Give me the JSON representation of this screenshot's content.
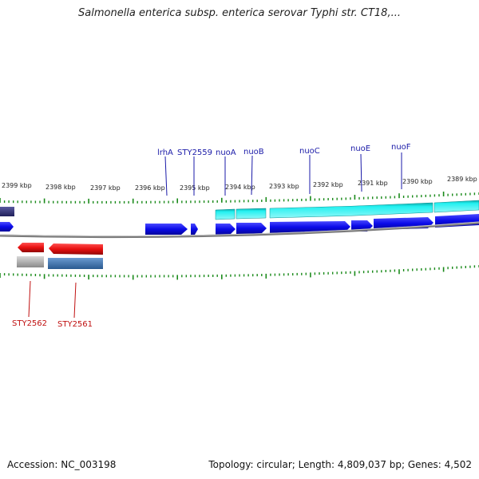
{
  "title": "Salmonella enterica subsp. enterica serovar Typhi str. CT18,...",
  "footer": {
    "accession": "Accession: NC_003198",
    "topology": "Topology: circular; Length: 4,809,037 bp; Genes: 4,502"
  },
  "kbp_labels": [
    "2399 kbp",
    "2398 kbp",
    "2397 kbp",
    "2396 kbp",
    "2395 kbp",
    "2394 kbp",
    "2393 kbp",
    "2392 kbp",
    "2391 kbp",
    "2390 kbp",
    "2389 kbp"
  ],
  "forward_genes": [
    "lrhA",
    "STY2559",
    "nuoA",
    "nuoB",
    "nuoC",
    "nuoE",
    "nuoF"
  ],
  "reverse_genes": [
    "STY2562",
    "STY2561"
  ],
  "colors": {
    "forward_gene": "#1010e0",
    "forward_cds": "#12e8e8",
    "reverse_gene": "#e01010",
    "reverse_cds_grey": "#b0b0b0",
    "reverse_cds_blue": "#4a7ab0",
    "backbone": "#888888",
    "tick": "#1a8a1a",
    "forward_label": "#1a1aa8",
    "reverse_label": "#c01010"
  }
}
